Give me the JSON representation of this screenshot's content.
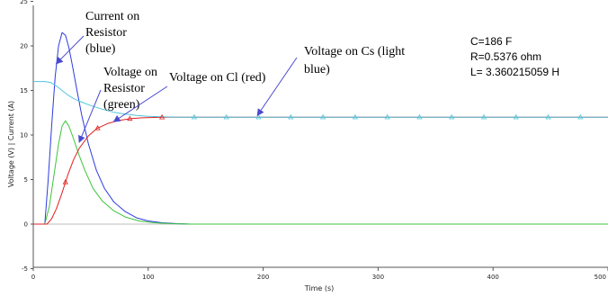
{
  "chart_data": {
    "type": "line",
    "xlabel": "Time (s)",
    "ylabel": "Voltage (V) | Current (A)",
    "xlim": [
      0,
      500
    ],
    "ylim": [
      -5,
      25
    ],
    "x_ticks": [
      0,
      100,
      200,
      300,
      400,
      500
    ],
    "y_ticks": [
      -5,
      0,
      5,
      10,
      15,
      20,
      25
    ],
    "x_tick_labels": [
      "0",
      "100",
      "200",
      "300",
      "400",
      "500"
    ],
    "y_tick_labels": [
      "-5",
      "0",
      "5",
      "10",
      "15",
      "20",
      "25"
    ],
    "grid": false,
    "series": [
      {
        "id": "current-resistor",
        "color": "#2b3be0",
        "x": [
          0,
          10,
          13,
          16,
          19,
          22,
          25,
          28,
          31,
          34,
          38,
          42,
          48,
          55,
          62,
          70,
          80,
          90,
          100,
          112,
          125,
          137,
          150,
          200,
          300,
          400,
          500
        ],
        "y": [
          0,
          0,
          5,
          11,
          16.5,
          20,
          21.5,
          21.2,
          19.8,
          17.8,
          15,
          12.3,
          9,
          6,
          4,
          2.5,
          1.4,
          0.7,
          0.35,
          0.15,
          0.05,
          0,
          0,
          0,
          0,
          0,
          0
        ]
      },
      {
        "id": "voltage-resistor",
        "color": "#3cc43c",
        "x": [
          0,
          10,
          14,
          18,
          22,
          25,
          28,
          31,
          35,
          40,
          45,
          52,
          60,
          70,
          80,
          92,
          105,
          120,
          137,
          150,
          200,
          300,
          400,
          500
        ],
        "y": [
          0,
          0,
          2,
          5.5,
          9,
          11,
          11.6,
          11,
          9.6,
          7.7,
          6,
          4,
          2.6,
          1.5,
          0.8,
          0.35,
          0.15,
          0.05,
          0,
          0,
          0,
          0,
          0,
          0
        ]
      },
      {
        "id": "voltage-cl",
        "color": "#e02020",
        "x": [
          0,
          12,
          16,
          20,
          25,
          30,
          35,
          40,
          48,
          55,
          65,
          75,
          85,
          95,
          105,
          115,
          130,
          150,
          200,
          300,
          400,
          500
        ],
        "y": [
          0,
          0,
          0.6,
          1.7,
          3.5,
          5.5,
          7.2,
          8.5,
          9.9,
          10.7,
          11.3,
          11.65,
          11.85,
          11.93,
          11.97,
          12,
          12,
          12,
          12,
          12,
          12,
          12
        ]
      },
      {
        "id": "voltage-cs",
        "color": "#4fc6dc",
        "x": [
          0,
          10,
          15,
          20,
          25,
          30,
          35,
          40,
          50,
          60,
          70,
          80,
          90,
          100,
          115,
          130,
          150,
          200,
          300,
          400,
          500
        ],
        "y": [
          16,
          16,
          15.9,
          15.5,
          15,
          14.5,
          14.1,
          13.8,
          13.3,
          12.9,
          12.55,
          12.35,
          12.2,
          12.1,
          12.03,
          12,
          12,
          12,
          12,
          12,
          12
        ]
      }
    ],
    "triangle_markers": [
      {
        "series": "voltage-cl",
        "x": [
          28,
          56,
          84,
          112
        ]
      },
      {
        "series": "voltage-cs",
        "x": [
          140,
          168,
          196,
          224,
          252,
          280,
          308,
          336,
          364,
          392,
          420,
          448,
          476,
          504
        ]
      }
    ],
    "annotations": [
      {
        "id": "current-on-resistor",
        "lines": [
          "Current on",
          "Resistor",
          "(blue)"
        ],
        "arrow_to": {
          "x": 20,
          "y": 18
        }
      },
      {
        "id": "voltage-on-resistor",
        "lines": [
          "Voltage on",
          "Resistor",
          "(green)"
        ],
        "arrow_to": {
          "x": 40,
          "y": 9.2
        }
      },
      {
        "id": "voltage-on-cl",
        "lines": [
          "Voltage on Cl (red)"
        ],
        "arrow_to": {
          "x": 70,
          "y": 11.5
        }
      },
      {
        "id": "voltage-on-cs",
        "lines": [
          "Voltage on Cs (light",
          "blue)"
        ],
        "arrow_to": {
          "x": 195,
          "y": 12.2
        }
      }
    ],
    "parameters": [
      "C=186 F",
      "R=0.5376 ohm",
      "L= 3.360215059 H"
    ]
  }
}
